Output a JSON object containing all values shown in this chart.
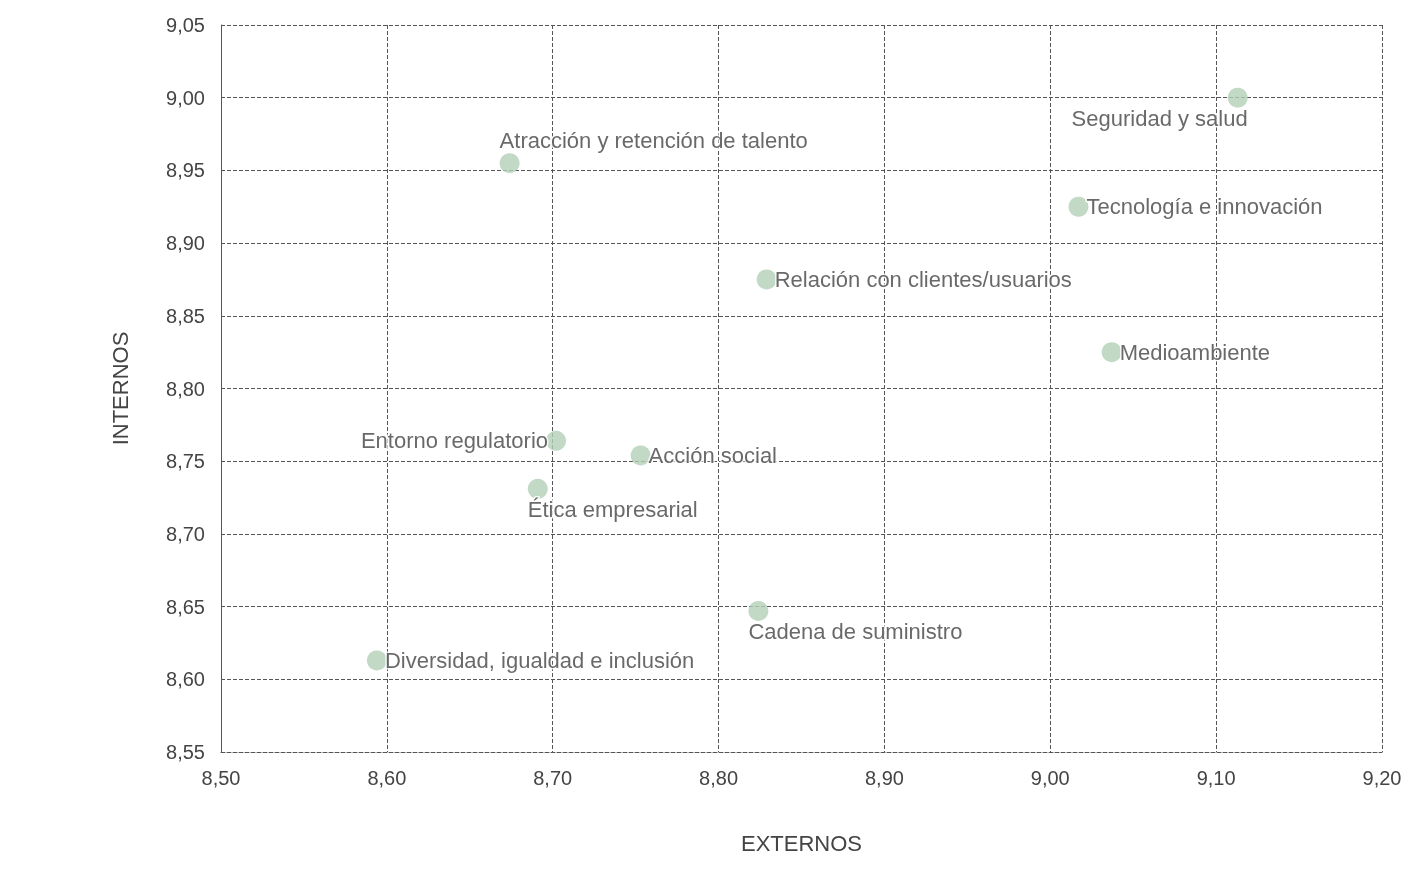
{
  "chart_data": {
    "type": "scatter",
    "xlabel": "EXTERNOS",
    "ylabel": "INTERNOS",
    "x": [
      9.113,
      8.674,
      9.017,
      8.829,
      9.037,
      8.702,
      8.753,
      8.691,
      8.824,
      8.594
    ],
    "series": [
      {
        "color": "#b3cfb8",
        "values": [
          9.0,
          8.955,
          8.925,
          8.875,
          8.825,
          8.764,
          8.754,
          8.731,
          8.647,
          8.613
        ]
      }
    ],
    "annotations": [
      {
        "text": "Seguridad y salud",
        "x": 9.113,
        "y": 9.0
      },
      {
        "text": "Atracción y retención de talento",
        "x": 8.674,
        "y": 8.955
      },
      {
        "text": "Tecnología e innovación",
        "x": 9.017,
        "y": 8.925
      },
      {
        "text": "Relación con clientes/usuarios",
        "x": 8.829,
        "y": 8.875
      },
      {
        "text": "Medioambiente",
        "x": 9.037,
        "y": 8.825
      },
      {
        "text": "Entorno regulatorio",
        "x": 8.702,
        "y": 8.764
      },
      {
        "text": "Acción social",
        "x": 8.753,
        "y": 8.754
      },
      {
        "text": "Ética empresarial",
        "x": 8.691,
        "y": 8.731
      },
      {
        "text": "Cadena de suministro",
        "x": 8.824,
        "y": 8.647
      },
      {
        "text": "Diversidad, igualdad e inclusión",
        "x": 8.594,
        "y": 8.613
      }
    ],
    "xlim": [
      8.5,
      9.2
    ],
    "xticks": [
      {
        "value": 8.5,
        "label": "8,50"
      },
      {
        "value": 8.6,
        "label": "8,60"
      },
      {
        "value": 8.7,
        "label": "8,70"
      },
      {
        "value": 8.8,
        "label": "8,80"
      },
      {
        "value": 8.9,
        "label": "8,90"
      },
      {
        "value": 9.0,
        "label": "9,00"
      },
      {
        "value": 9.1,
        "label": "9,10"
      },
      {
        "value": 9.2,
        "label": "9,20"
      }
    ],
    "ylim": [
      8.55,
      9.05
    ],
    "yticks": [
      {
        "value": 8.55,
        "label": "8,55"
      },
      {
        "value": 8.6,
        "label": "8,60"
      },
      {
        "value": 8.65,
        "label": "8,65"
      },
      {
        "value": 8.7,
        "label": "8,70"
      },
      {
        "value": 8.75,
        "label": "8,75"
      },
      {
        "value": 8.8,
        "label": "8,80"
      },
      {
        "value": 8.85,
        "label": "8,85"
      },
      {
        "value": 8.9,
        "label": "8,90"
      },
      {
        "value": 8.95,
        "label": "8,95"
      },
      {
        "value": 9.0,
        "label": "9,00"
      },
      {
        "value": 9.05,
        "label": "9,05"
      }
    ],
    "grid": true,
    "marker": "circle"
  }
}
